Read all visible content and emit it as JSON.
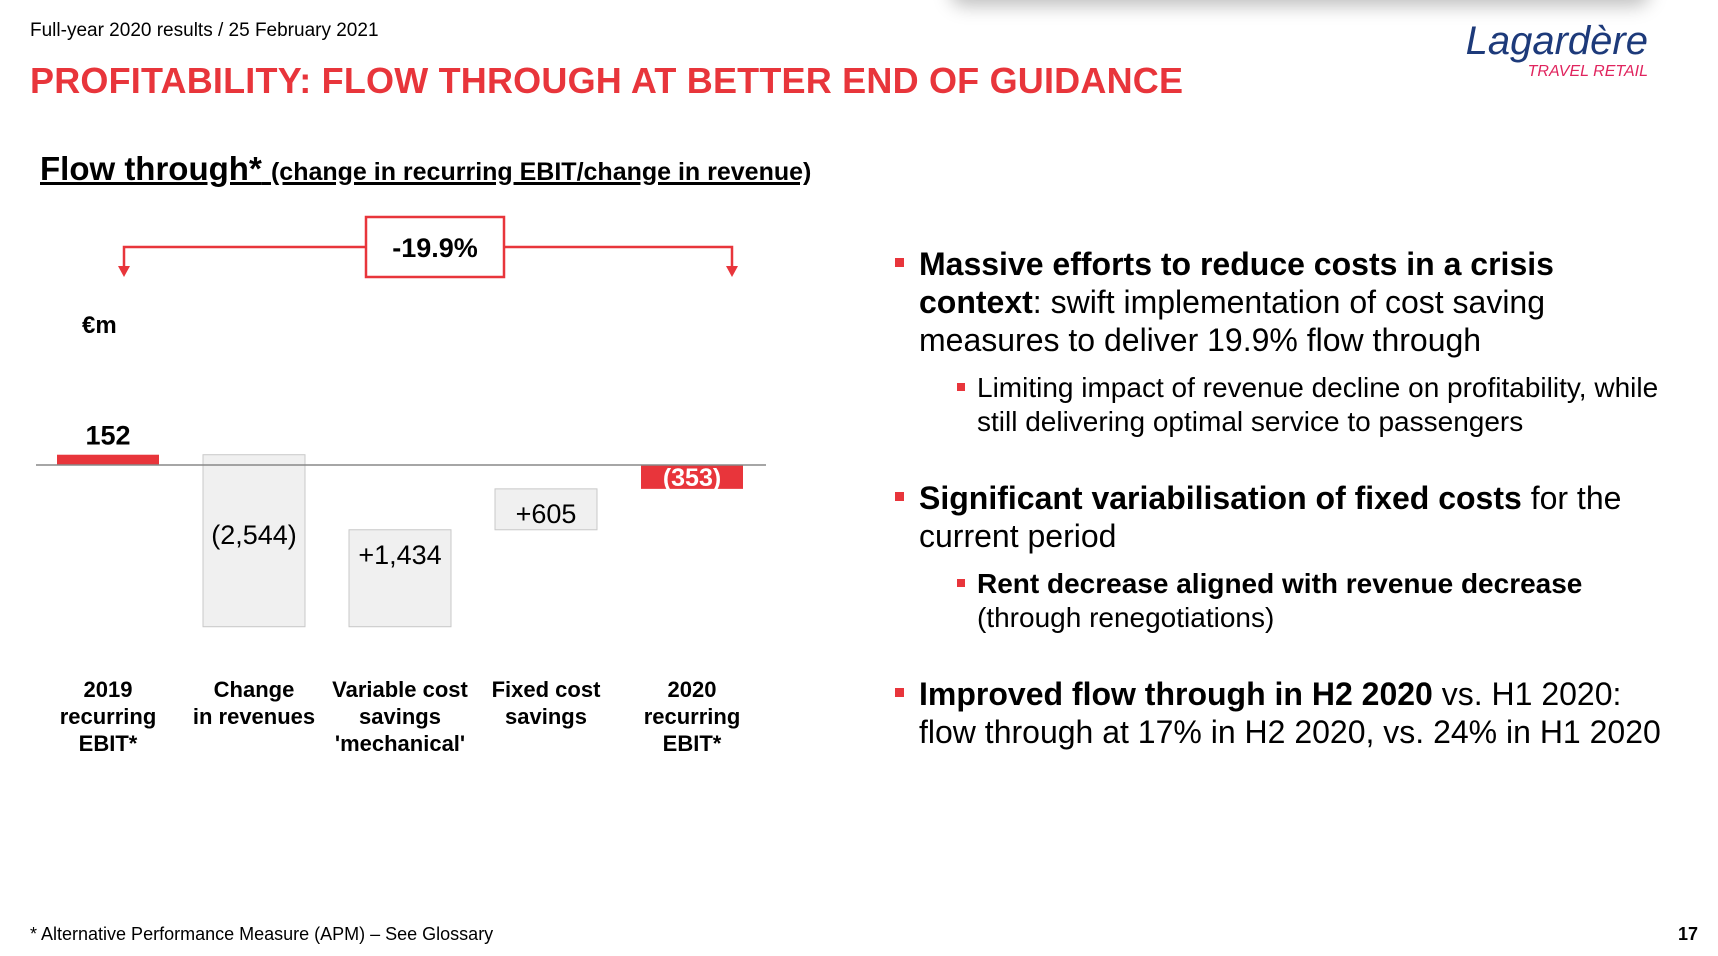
{
  "header": {
    "date": "Full-year 2020 results / 25 February 2021",
    "title": "PROFITABILITY: FLOW THROUGH AT BETTER END OF GUIDANCE"
  },
  "logo": {
    "name": "Lagardère",
    "tagline": "TRAVEL RETAIL"
  },
  "chart_data": {
    "type": "bar",
    "title": "Flow through*",
    "subtitle": "(change in recurring EBIT/change in revenue)",
    "unit": "€m",
    "categories": [
      "2019 recurring EBIT*",
      "Change in revenues",
      "Variable cost savings 'mechanical'",
      "Fixed cost savings",
      "2020 recurring EBIT*"
    ],
    "category_lines": [
      [
        "2019",
        "recurring",
        "EBIT*"
      ],
      [
        "Change",
        "in revenues"
      ],
      [
        "Variable cost",
        "savings",
        "'mechanical'"
      ],
      [
        "Fixed cost",
        "savings"
      ],
      [
        "2020",
        "recurring",
        "EBIT*"
      ]
    ],
    "values": [
      152,
      -2544,
      1434,
      605,
      -353
    ],
    "labels": [
      "152",
      "(2,544)",
      "+1,434",
      "+605",
      "(353)"
    ],
    "bar_kind": [
      "total",
      "delta",
      "delta",
      "delta",
      "total"
    ],
    "annotation": "-19.9%",
    "colors": {
      "total": "#e8353b",
      "delta": "#f0f0f0",
      "delta_border": "#c8c8c8",
      "accent": "#e8353b"
    }
  },
  "bullets": [
    {
      "bold": "Massive efforts to reduce costs in a crisis context",
      "text": ": swift implementation of cost saving measures to deliver 19.9% flow through",
      "sub": {
        "bold": "",
        "text": "Limiting impact of revenue decline on profitability, while still delivering optimal service to passengers"
      }
    },
    {
      "bold": "Significant variabilisation of fixed costs",
      "text": " for the current period",
      "sub": {
        "bold": "Rent decrease aligned with revenue decrease",
        "text": " (through renegotiations)"
      }
    },
    {
      "bold": "Improved flow through in H2 2020",
      "text": " vs. H1 2020: flow through at 17% in H2 2020, vs. 24% in H1 2020"
    }
  ],
  "footer": {
    "footnote": "* Alternative Performance Measure (APM) – See Glossary",
    "page": "17"
  }
}
